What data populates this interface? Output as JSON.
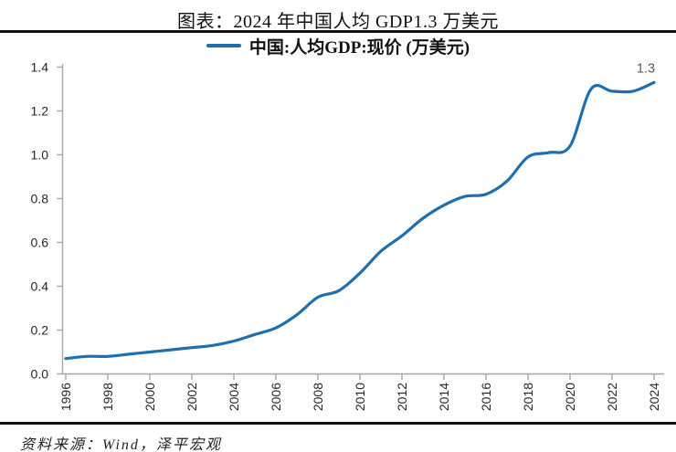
{
  "header": {
    "title": "图表：2024 年中国人均 GDP1.3 万美元"
  },
  "legend": {
    "label": "中国:人均GDP:现价 (万美元)",
    "line_color": "#1f6fae"
  },
  "footer": {
    "source": "资料来源：Wind，泽平宏观"
  },
  "colors": {
    "line": "#1f6fae",
    "axis": "#a6a6a6",
    "tick_label": "#262626",
    "end_label": "#595959",
    "rule": "#111111"
  },
  "chart_data": {
    "type": "line",
    "title": "图表：2024 年中国人均 GDP1.3 万美元",
    "xlabel": "",
    "ylabel": "",
    "grid": false,
    "legend_position": "top",
    "xlim": [
      1996,
      2024
    ],
    "ylim": [
      0.0,
      1.4
    ],
    "x_ticks": [
      1996,
      1998,
      2000,
      2002,
      2004,
      2006,
      2008,
      2010,
      2012,
      2014,
      2016,
      2018,
      2020,
      2022,
      2024
    ],
    "y_ticks": [
      0.0,
      0.2,
      0.4,
      0.6,
      0.8,
      1.0,
      1.2,
      1.4
    ],
    "end_label": "1.3",
    "series": [
      {
        "name": "中国:人均GDP:现价 (万美元)",
        "color": "#1f6fae",
        "x": [
          1996,
          1997,
          1998,
          1999,
          2000,
          2001,
          2002,
          2003,
          2004,
          2005,
          2006,
          2007,
          2008,
          2009,
          2010,
          2011,
          2012,
          2013,
          2014,
          2015,
          2016,
          2017,
          2018,
          2019,
          2020,
          2021,
          2022,
          2023,
          2024
        ],
        "values": [
          0.07,
          0.08,
          0.08,
          0.09,
          0.1,
          0.11,
          0.12,
          0.13,
          0.15,
          0.18,
          0.21,
          0.27,
          0.35,
          0.38,
          0.46,
          0.56,
          0.63,
          0.71,
          0.77,
          0.81,
          0.82,
          0.88,
          0.99,
          1.01,
          1.04,
          1.3,
          1.29,
          1.29,
          1.33
        ]
      }
    ]
  }
}
